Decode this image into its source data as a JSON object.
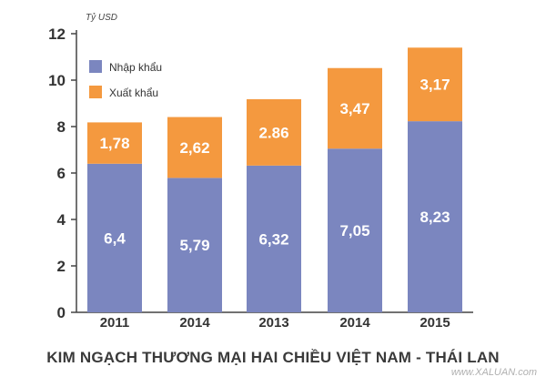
{
  "chart_data": {
    "type": "bar",
    "stacked": true,
    "title": "KIM NGẠCH THƯƠNG MẠI HAI CHIỀU VIỆT NAM - THÁI LAN",
    "ylabel": "Tỷ USD",
    "xlabel": "",
    "ylim": [
      0,
      12
    ],
    "yticks": [
      0,
      2,
      4,
      6,
      8,
      10,
      12
    ],
    "categories": [
      "2011",
      "2014",
      "2013",
      "2014",
      "2015"
    ],
    "series": [
      {
        "name": "Nhập khẩu",
        "color": "#7b86bf",
        "values": [
          6.4,
          5.79,
          6.32,
          7.05,
          8.23
        ],
        "labels": [
          "6,4",
          "5,79",
          "6,32",
          "7,05",
          "8,23"
        ]
      },
      {
        "name": "Xuất khẩu",
        "color": "#f4993f",
        "values": [
          1.78,
          2.62,
          2.86,
          3.47,
          3.17
        ],
        "labels": [
          "1,78",
          "2,62",
          "2.86",
          "3,47",
          "3,17"
        ]
      }
    ],
    "legend_position": "top-left"
  },
  "watermark": "www.XALUAN.com"
}
